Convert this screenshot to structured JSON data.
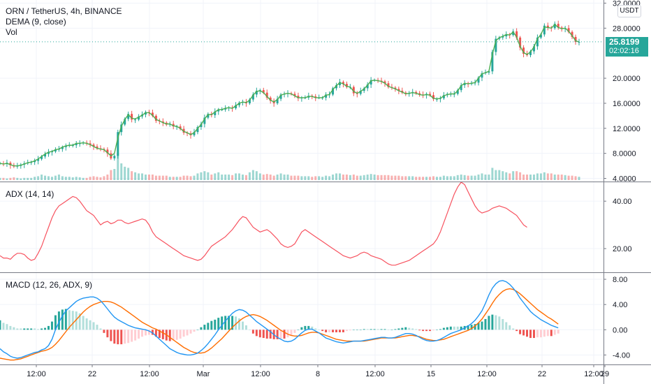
{
  "header": {
    "symbol_line": "ORN / TetherUS, 4h, BINANCE",
    "dema_label": "DEMA (9, close)",
    "vol_label": "Vol",
    "currency": "USDT",
    "last_price": "25.8199",
    "countdown": "02:02:16"
  },
  "colors": {
    "up": "#26a69a",
    "down": "#ef5350",
    "dema": "#4caf50",
    "adx": "#f7525f",
    "macd": "#2196f3",
    "signal": "#ff6d00",
    "hist_up_strong": "#26a69a",
    "hist_up_weak": "#b2dfdb",
    "hist_down_strong": "#ef5350",
    "hist_down_weak": "#ffcdd2",
    "price_line": "#26a69a"
  },
  "x_axis": {
    "labels": [
      "12:00",
      "22",
      "12:00",
      "Mar",
      "12:00",
      "8",
      "12:00",
      "15",
      "12:00",
      "22",
      "12:00",
      "29"
    ]
  },
  "chart_data": [
    {
      "type": "candlestick",
      "title": "ORN / TetherUS, 4h, BINANCE",
      "y_ticks": [
        "4.0000",
        "8.0000",
        "12.0000",
        "16.0000",
        "20.0000",
        "28.0000",
        "32.0000"
      ],
      "ylim": [
        3.5,
        32.5
      ],
      "close_series": [
        6.4,
        6.3,
        6.5,
        6.1,
        5.9,
        6.0,
        6.2,
        6.4,
        6.5,
        6.6,
        6.8,
        7.1,
        7.5,
        7.9,
        8.2,
        8.3,
        8.6,
        8.7,
        9.0,
        9.2,
        9.3,
        9.3,
        9.6,
        9.6,
        9.7,
        9.6,
        9.4,
        9.1,
        8.8,
        8.7,
        8.6,
        8.0,
        7.2,
        7.6,
        11.4,
        12.6,
        13.5,
        14.3,
        13.4,
        13.4,
        13.9,
        14.2,
        14.6,
        14.5,
        14.0,
        13.2,
        13.1,
        12.9,
        12.6,
        12.7,
        12.3,
        12.3,
        11.9,
        11.3,
        11.2,
        10.9,
        11.4,
        12.2,
        12.7,
        13.7,
        14.3,
        14.1,
        14.7,
        15.0,
        15.0,
        15.2,
        15.3,
        15.2,
        15.7,
        16.1,
        16.2,
        16.0,
        16.6,
        17.4,
        18.0,
        18.1,
        17.7,
        16.9,
        16.4,
        16.0,
        16.7,
        17.4,
        17.5,
        17.6,
        17.5,
        17.2,
        16.8,
        16.9,
        16.9,
        17.2,
        17.1,
        16.9,
        16.9,
        16.9,
        17.4,
        17.4,
        18.4,
        18.9,
        19.4,
        19.1,
        18.6,
        18.6,
        17.6,
        17.5,
        18.0,
        18.4,
        19.0,
        19.7,
        19.7,
        19.6,
        19.5,
        19.2,
        18.6,
        18.5,
        18.3,
        18.0,
        17.7,
        17.5,
        17.6,
        17.8,
        17.6,
        17.4,
        17.3,
        17.5,
        17.3,
        16.7,
        16.7,
        16.8,
        17.3,
        17.5,
        17.5,
        17.5,
        18.1,
        18.9,
        19.2,
        19.1,
        19.2,
        19.3,
        20.1,
        20.8,
        20.9,
        21.1,
        24.2,
        26.3,
        26.5,
        26.7,
        27.0,
        26.9,
        27.5,
        26.5,
        24.9,
        23.9,
        23.7,
        24.3,
        25.1,
        26.5,
        27.0,
        28.4,
        28.1,
        28.0,
        28.7,
        28.1,
        27.9,
        28.0,
        27.4,
        26.6,
        25.8,
        25.8
      ],
      "dema_series": [
        6.4,
        6.3,
        6.4,
        6.2,
        6.0,
        6.0,
        6.1,
        6.3,
        6.5,
        6.6,
        6.8,
        7.1,
        7.5,
        7.9,
        8.2,
        8.3,
        8.6,
        8.7,
        9.0,
        9.2,
        9.3,
        9.3,
        9.6,
        9.6,
        9.7,
        9.6,
        9.4,
        9.1,
        8.8,
        8.7,
        8.6,
        8.1,
        7.6,
        8.0,
        10.5,
        12.3,
        13.4,
        14.2,
        13.6,
        13.5,
        13.8,
        14.1,
        14.5,
        14.5,
        14.1,
        13.4,
        13.2,
        12.9,
        12.7,
        12.7,
        12.4,
        12.3,
        12.0,
        11.5,
        11.3,
        11.0,
        11.3,
        12.0,
        12.6,
        13.5,
        14.2,
        14.2,
        14.6,
        15.0,
        15.0,
        15.2,
        15.3,
        15.2,
        15.6,
        16.0,
        16.2,
        16.1,
        16.5,
        17.3,
        17.9,
        18.0,
        17.7,
        17.1,
        16.5,
        16.2,
        16.6,
        17.3,
        17.5,
        17.6,
        17.5,
        17.2,
        16.9,
        16.9,
        16.9,
        17.1,
        17.1,
        16.9,
        16.9,
        16.9,
        17.3,
        17.4,
        18.2,
        18.8,
        19.3,
        19.1,
        18.7,
        18.6,
        17.9,
        17.6,
        17.9,
        18.3,
        18.9,
        19.6,
        19.7,
        19.6,
        19.5,
        19.2,
        18.7,
        18.5,
        18.3,
        18.0,
        17.8,
        17.5,
        17.6,
        17.7,
        17.6,
        17.4,
        17.3,
        17.4,
        17.3,
        16.8,
        16.7,
        16.8,
        17.2,
        17.4,
        17.5,
        17.5,
        18.0,
        18.8,
        19.2,
        19.1,
        19.2,
        19.3,
        20.0,
        20.7,
        20.9,
        21.1,
        23.8,
        26.0,
        26.5,
        26.7,
        27.0,
        26.9,
        27.4,
        26.6,
        25.1,
        24.1,
        23.8,
        24.2,
        25.0,
        26.3,
        27.0,
        28.2,
        28.1,
        28.0,
        28.6,
        28.1,
        27.9,
        28.0,
        27.5,
        26.8,
        26.0,
        25.8
      ],
      "volume_series": [
        0.2,
        0.2,
        0.15,
        0.2,
        0.25,
        0.2,
        0.15,
        0.2,
        0.2,
        0.2,
        0.3,
        0.35,
        0.5,
        0.4,
        0.35,
        0.3,
        0.4,
        0.5,
        0.35,
        0.3,
        0.3,
        0.25,
        0.3,
        0.25,
        0.2,
        0.2,
        0.3,
        0.35,
        0.3,
        0.25,
        0.35,
        0.5,
        0.9,
        1.0,
        2.4,
        1.5,
        1.2,
        1.1,
        0.8,
        0.7,
        0.6,
        0.6,
        0.5,
        0.5,
        0.5,
        0.4,
        0.4,
        0.4,
        0.4,
        0.3,
        0.3,
        0.3,
        0.3,
        0.4,
        0.4,
        0.35,
        0.4,
        0.6,
        0.7,
        0.8,
        0.7,
        0.5,
        0.6,
        0.7,
        0.5,
        0.5,
        0.5,
        0.45,
        0.6,
        0.6,
        0.5,
        0.45,
        0.7,
        0.9,
        0.8,
        0.6,
        0.5,
        0.55,
        0.5,
        0.4,
        0.5,
        0.6,
        0.5,
        0.5,
        0.4,
        0.4,
        0.4,
        0.35,
        0.35,
        0.35,
        0.3,
        0.35,
        0.35,
        0.3,
        0.4,
        0.35,
        0.5,
        0.6,
        0.6,
        0.5,
        0.5,
        0.45,
        0.5,
        0.4,
        0.4,
        0.45,
        0.5,
        0.55,
        0.5,
        0.45,
        0.45,
        0.45,
        0.45,
        0.4,
        0.4,
        0.4,
        0.35,
        0.35,
        0.35,
        0.35,
        0.3,
        0.3,
        0.3,
        0.3,
        0.3,
        0.35,
        0.3,
        0.3,
        0.4,
        0.35,
        0.35,
        0.35,
        0.45,
        0.5,
        0.45,
        0.4,
        0.4,
        0.4,
        0.5,
        0.6,
        0.5,
        0.5,
        1.1,
        0.9,
        0.9,
        0.8,
        0.7,
        0.6,
        0.8,
        0.8,
        0.7,
        0.5,
        0.5,
        0.5,
        0.5,
        0.6,
        0.6,
        0.7,
        0.6,
        0.6,
        0.5,
        0.5,
        0.5,
        0.45,
        0.4,
        0.4,
        0.35,
        0.3
      ]
    },
    {
      "type": "line",
      "title": "ADX (14, 14)",
      "y_ticks": [
        "20.00",
        "40.00"
      ],
      "ylim": [
        10,
        48
      ],
      "series": [
        {
          "name": "ADX (14, 14)",
          "values": [
            17,
            16,
            16,
            15.5,
            17,
            18,
            18,
            17.5,
            16,
            15,
            15.5,
            18,
            21,
            25,
            29,
            33,
            36,
            38,
            39,
            40,
            41,
            42,
            41.5,
            40,
            38,
            36,
            35,
            34,
            32,
            30,
            31,
            31.5,
            30.5,
            31,
            32,
            32,
            31,
            30.5,
            31,
            31.5,
            32,
            32.5,
            32,
            30,
            27,
            25,
            24,
            23,
            22,
            21,
            20,
            19,
            18,
            17,
            16.5,
            16,
            15.5,
            15,
            15.5,
            17,
            19,
            21,
            22,
            23,
            24,
            25,
            26.5,
            28,
            30,
            32,
            33.5,
            33,
            31,
            29,
            28,
            27,
            27.5,
            28,
            27,
            25.5,
            24,
            22,
            21,
            20.5,
            21,
            22,
            24.5,
            27,
            28,
            27,
            26,
            25,
            24,
            23,
            22,
            21,
            20,
            19,
            18,
            17,
            16.5,
            16,
            16.5,
            17,
            18,
            18.5,
            18,
            17,
            16.5,
            16,
            15.5,
            14.5,
            13.5,
            13,
            13,
            13.5,
            14,
            14.5,
            15,
            16,
            17,
            18,
            19,
            20,
            21,
            22,
            24,
            27,
            31,
            35,
            39,
            43,
            46,
            48,
            47,
            44,
            41,
            38,
            36,
            35,
            35.5,
            36,
            37,
            37.5,
            38,
            37.5,
            37,
            36,
            35,
            34,
            32,
            30,
            29
          ]
        }
      ]
    },
    {
      "type": "line",
      "title": "MACD (12, 26, ADX, 9)",
      "y_ticks": [
        "-4.00",
        "0.00",
        "4.00",
        "8.00"
      ],
      "ylim": [
        -5.5,
        9
      ],
      "series": [
        {
          "name": "MACD",
          "values": [
            -3.0,
            -3.5,
            -3.8,
            -4.2,
            -4.4,
            -4.5,
            -4.4,
            -4.2,
            -4.0,
            -3.8,
            -3.6,
            -3.5,
            -3.2,
            -3.0,
            -2.5,
            -1.5,
            0.0,
            1.2,
            2.2,
            3.0,
            3.5,
            4.0,
            4.5,
            4.8,
            5.0,
            5.1,
            5.2,
            5.2,
            5.0,
            4.6,
            4.0,
            3.3,
            2.6,
            2.0,
            1.6,
            1.3,
            1.0,
            0.7,
            0.5,
            0.3,
            0.2,
            0.1,
            0.0,
            -0.2,
            -0.5,
            -1.0,
            -1.5,
            -2.0,
            -2.5,
            -3.0,
            -3.3,
            -3.6,
            -3.8,
            -3.9,
            -4.0,
            -4.0,
            -3.9,
            -3.7,
            -3.3,
            -2.8,
            -2.2,
            -1.5,
            -0.8,
            0.0,
            0.7,
            1.4,
            2.0,
            2.6,
            3.0,
            3.2,
            3.1,
            2.8,
            2.3,
            1.8,
            1.3,
            0.9,
            0.5,
            0.1,
            -0.3,
            -0.8,
            -1.2,
            -1.5,
            -1.8,
            -1.9,
            -1.8,
            -1.5,
            -1.0,
            -0.5,
            -0.1,
            0.1,
            0.1,
            -0.2,
            -0.5,
            -0.9,
            -1.3,
            -1.5,
            -1.7,
            -1.9,
            -2.0,
            -2.1,
            -2.0,
            -1.9,
            -1.8,
            -1.8,
            -1.8,
            -1.7,
            -1.6,
            -1.5,
            -1.4,
            -1.3,
            -1.2,
            -1.2,
            -1.3,
            -1.3,
            -1.2,
            -1.0,
            -0.8,
            -0.6,
            -0.6,
            -0.7,
            -0.9,
            -1.2,
            -1.5,
            -1.7,
            -1.8,
            -1.8,
            -1.7,
            -1.5,
            -1.2,
            -0.9,
            -0.6,
            -0.4,
            -0.2,
            0.0,
            0.3,
            0.6,
            1.0,
            1.5,
            2.2,
            3.0,
            4.2,
            5.5,
            6.6,
            7.3,
            7.7,
            7.8,
            7.6,
            7.2,
            6.6,
            5.9,
            5.0,
            4.3,
            3.6,
            2.9,
            2.4,
            2.0,
            1.6,
            1.3,
            1.0,
            0.7,
            0.5,
            0.3
          ]
        },
        {
          "name": "Signal",
          "values": [
            -4.5,
            -4.6,
            -4.7,
            -4.8,
            -4.8,
            -4.7,
            -4.6,
            -4.4,
            -4.2,
            -4.0,
            -3.8,
            -3.6,
            -3.4,
            -3.3,
            -3.1,
            -2.8,
            -2.3,
            -1.7,
            -1.0,
            -0.3,
            0.4,
            1.0,
            1.6,
            2.2,
            2.8,
            3.3,
            3.7,
            4.0,
            4.2,
            4.4,
            4.5,
            4.5,
            4.4,
            4.2,
            3.9,
            3.6,
            3.2,
            2.8,
            2.4,
            2.0,
            1.6,
            1.2,
            0.9,
            0.6,
            0.3,
            0.1,
            -0.2,
            -0.5,
            -0.8,
            -1.2,
            -1.6,
            -2.0,
            -2.4,
            -2.8,
            -3.1,
            -3.4,
            -3.6,
            -3.7,
            -3.7,
            -3.6,
            -3.3,
            -2.9,
            -2.4,
            -1.9,
            -1.4,
            -0.8,
            -0.2,
            0.4,
            0.9,
            1.4,
            1.8,
            2.1,
            2.3,
            2.4,
            2.3,
            2.1,
            1.8,
            1.5,
            1.1,
            0.7,
            0.3,
            -0.1,
            -0.4,
            -0.7,
            -0.9,
            -1.0,
            -1.0,
            -0.9,
            -0.7,
            -0.5,
            -0.4,
            -0.4,
            -0.5,
            -0.7,
            -0.9,
            -1.1,
            -1.3,
            -1.5,
            -1.6,
            -1.7,
            -1.8,
            -1.8,
            -1.8,
            -1.8,
            -1.8,
            -1.8,
            -1.7,
            -1.6,
            -1.5,
            -1.4,
            -1.3,
            -1.3,
            -1.3,
            -1.3,
            -1.3,
            -1.2,
            -1.1,
            -1.0,
            -0.9,
            -0.9,
            -1.0,
            -1.1,
            -1.3,
            -1.5,
            -1.6,
            -1.7,
            -1.7,
            -1.6,
            -1.5,
            -1.3,
            -1.1,
            -0.9,
            -0.7,
            -0.5,
            -0.3,
            -0.1,
            0.2,
            0.6,
            1.1,
            1.7,
            2.5,
            3.3,
            4.2,
            5.0,
            5.6,
            6.1,
            6.4,
            6.5,
            6.4,
            6.1,
            5.7,
            5.2,
            4.7,
            4.2,
            3.7,
            3.2,
            2.8,
            2.4,
            2.0,
            1.7,
            1.3,
            0.9
          ]
        }
      ]
    }
  ]
}
